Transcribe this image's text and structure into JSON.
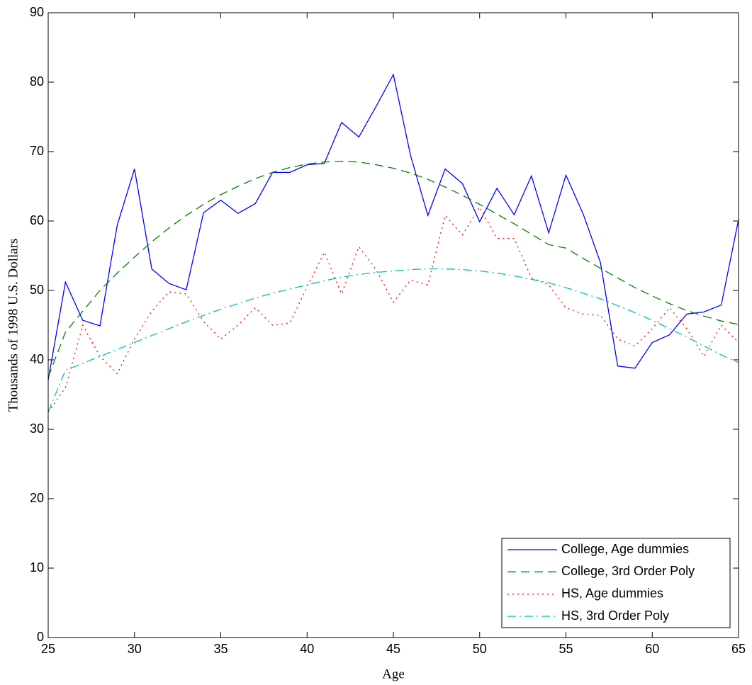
{
  "chart_data": {
    "type": "line",
    "x_label": "Age",
    "y_label": "Thousands of 1998 U.S. Dollars",
    "x": [
      25,
      26,
      27,
      28,
      29,
      30,
      31,
      32,
      33,
      34,
      35,
      36,
      37,
      38,
      39,
      40,
      41,
      42,
      43,
      44,
      45,
      46,
      47,
      48,
      49,
      50,
      51,
      52,
      53,
      54,
      55,
      56,
      57,
      58,
      59,
      60,
      61,
      62,
      63,
      64,
      65
    ],
    "series": [
      {
        "name": "College, Age dummies",
        "color": "#0000ff",
        "style": "solid",
        "values": [
          37.1,
          51.2,
          45.7,
          44.9,
          59.4,
          67.5,
          53.1,
          51.0,
          50.1,
          61.2,
          63.0,
          61.1,
          62.5,
          67.0,
          67.0,
          68.1,
          68.3,
          74.2,
          72.1,
          76.5,
          81.1,
          69.4,
          60.8,
          67.5,
          65.4,
          59.9,
          64.7,
          60.9,
          66.5,
          58.3,
          66.6,
          61.0,
          54.0,
          39.1,
          38.8,
          42.5,
          43.6,
          46.6,
          46.9,
          47.9,
          60.2
        ]
      },
      {
        "name": "College, 3rd Order Poly",
        "color": "#008000",
        "style": "dashed",
        "values": [
          37.5,
          44,
          47,
          50,
          52.5,
          54.8,
          57,
          59,
          60.8,
          62.4,
          63.8,
          65,
          66.1,
          67,
          67.7,
          68.2,
          68.5,
          68.6,
          68.5,
          68.1,
          67.6,
          66.9,
          66,
          64.9,
          63.7,
          62.4,
          61,
          59.6,
          58.1,
          56.6,
          56.1,
          54.6,
          53.2,
          51.8,
          50.4,
          49.2,
          48.1,
          47.1,
          46.3,
          45.6,
          45.1
        ]
      },
      {
        "name": "HS, Age dummies",
        "color": "#ff0000",
        "style": "dotted",
        "values": [
          32.5,
          36,
          45,
          40.5,
          38,
          43,
          47,
          49.8,
          49.5,
          45.5,
          43,
          45,
          47.5,
          45,
          45.3,
          50.5,
          55.5,
          49.5,
          56.3,
          53,
          48.3,
          51.5,
          50.8,
          60.8,
          58,
          62,
          57.5,
          57.5,
          51.8,
          50.8,
          47.5,
          46.6,
          46.4,
          43,
          42,
          44.5,
          47.5,
          44.5,
          40.5,
          45,
          42.5
        ]
      },
      {
        "name": "HS, 3rd Order Poly",
        "color": "#00bfbf",
        "style": "dashdot",
        "values": [
          32.5,
          38.5,
          39.5,
          40.5,
          41.5,
          42.5,
          43.5,
          44.5,
          45.5,
          46.4,
          47.3,
          48.1,
          48.9,
          49.6,
          50.2,
          50.8,
          51.4,
          51.9,
          52.3,
          52.6,
          52.8,
          53,
          53.1,
          53.1,
          53,
          52.8,
          52.5,
          52.1,
          51.6,
          51.1,
          50.4,
          49.6,
          48.8,
          47.8,
          46.8,
          45.7,
          44.5,
          43.3,
          42,
          40.7,
          39.6
        ]
      }
    ],
    "xlim": [
      25,
      65
    ],
    "xticks": [
      25,
      30,
      35,
      40,
      45,
      50,
      55,
      60,
      65
    ],
    "ylim": [
      0,
      90
    ],
    "yticks": [
      0,
      10,
      20,
      30,
      40,
      50,
      60,
      70,
      80,
      90
    ],
    "legend": "lower right"
  }
}
